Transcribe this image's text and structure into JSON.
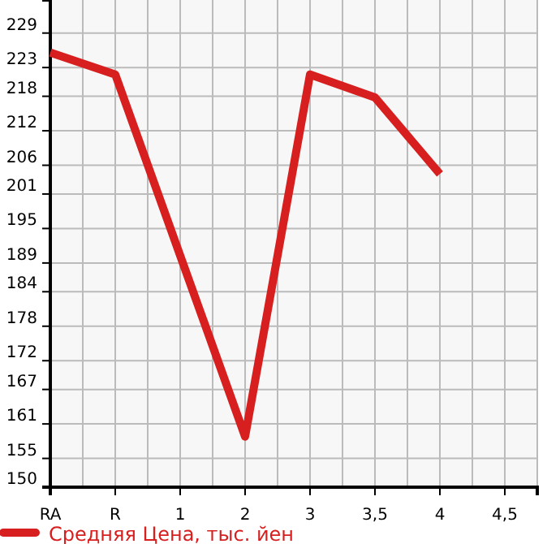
{
  "chart_data": {
    "type": "line",
    "categories": [
      "RA",
      "R",
      "1",
      "2",
      "3",
      "3,5",
      "4",
      "4,5"
    ],
    "series": [
      {
        "name": "Средняя Цена, тыс. йен",
        "color": "#d71f1f",
        "values": [
          225.6,
          221.8,
          190.3,
          158.8,
          221.8,
          217.8,
          204.5,
          null
        ]
      }
    ],
    "ylim": [
      150,
      234.75
    ],
    "yticks": [
      150,
      155,
      161,
      167,
      172,
      178,
      184,
      189,
      195,
      201,
      206,
      212,
      218,
      223,
      229
    ],
    "grid": true,
    "legend": "bottom",
    "marker": "none",
    "line_style": "solid"
  }
}
